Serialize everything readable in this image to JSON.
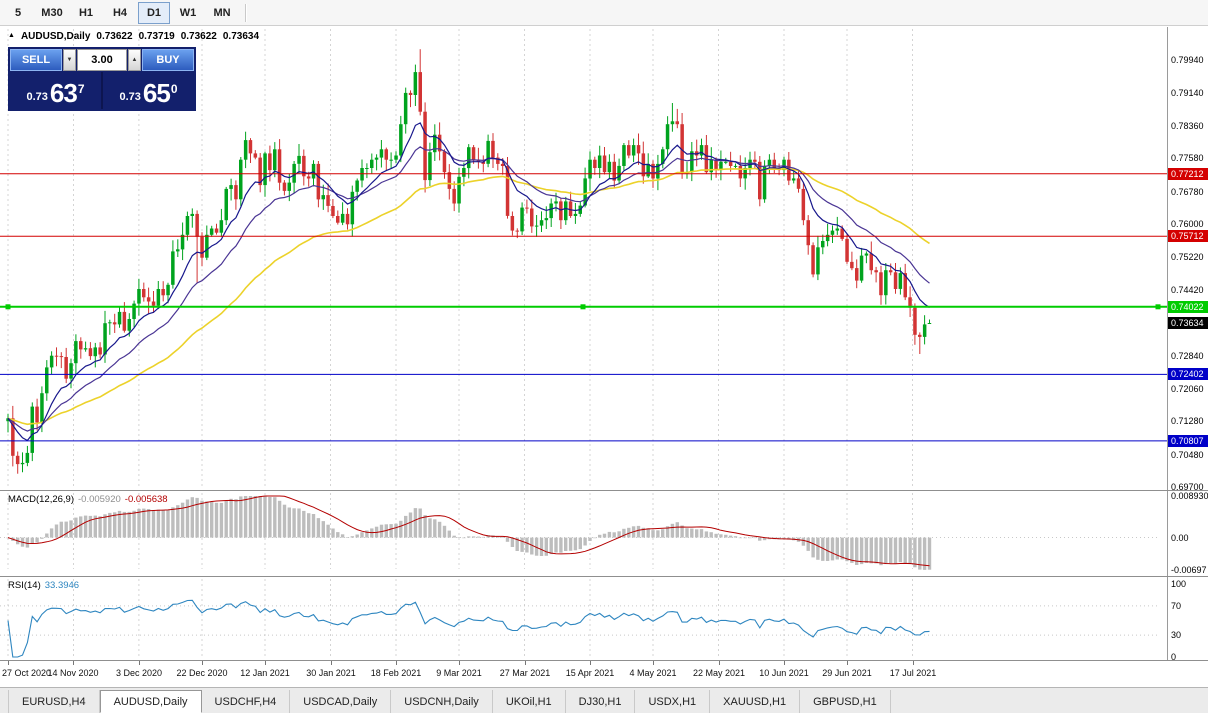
{
  "toolbar": {
    "buttons": [
      {
        "label": "5",
        "active": false
      },
      {
        "label": "M30",
        "active": false
      },
      {
        "label": "H1",
        "active": false
      },
      {
        "label": "H4",
        "active": false
      },
      {
        "label": "D1",
        "active": true
      },
      {
        "label": "W1",
        "active": false
      },
      {
        "label": "MN",
        "active": false
      }
    ]
  },
  "chart": {
    "title": {
      "marker": "▲",
      "symbol": "AUDUSD,Daily",
      "open": "0.73622",
      "high": "0.73719",
      "low": "0.73622",
      "close": "0.73634"
    }
  },
  "trade_panel": {
    "sell_label": "SELL",
    "buy_label": "BUY",
    "volume": "3.00",
    "spin_down": "▼",
    "spin_up": "▲",
    "sell_price_main": "0.73",
    "sell_price_big": "63",
    "sell_price_sup": "7",
    "buy_price_main": "0.73",
    "buy_price_big": "65",
    "buy_price_sup": "0"
  },
  "macd": {
    "name": "MACD(12,26,9)",
    "value_main": "-0.005920",
    "value_signal": "-0.005638"
  },
  "rsi": {
    "name": "RSI(14)",
    "value": "33.3946"
  },
  "tabs": {
    "active_index": 1,
    "items": [
      "EURUSD,H4",
      "AUDUSD,Daily",
      "USDCHF,H4",
      "USDCAD,Daily",
      "USDCNH,Daily",
      "UKOil,H1",
      "DJ30,H1",
      "USDX,H1",
      "XAUUSD,H1",
      "GBPUSD,H1"
    ]
  },
  "chart_data": {
    "type": "candlestick",
    "symbol": "AUDUSD",
    "timeframe": "Daily",
    "price_axis_labels": [
      "0.79940",
      "0.79140",
      "0.78360",
      "0.77580",
      "0.76780",
      "0.76000",
      "0.75220",
      "0.74420",
      "0.73640",
      "0.72840",
      "0.72060",
      "0.71280",
      "0.70480",
      "0.69700"
    ],
    "date_ticks": [
      {
        "label": "27 Oct 2020",
        "i": 0
      },
      {
        "label": "14 Nov 2020",
        "i": 13.5
      },
      {
        "label": "3 Dec 2020",
        "i": 27
      },
      {
        "label": "22 Dec 2020",
        "i": 40
      },
      {
        "label": "12 Jan 2021",
        "i": 53
      },
      {
        "label": "30 Jan 2021",
        "i": 66.5
      },
      {
        "label": "18 Feb 2021",
        "i": 80
      },
      {
        "label": "9 Mar 2021",
        "i": 93
      },
      {
        "label": "27 Mar 2021",
        "i": 106.5
      },
      {
        "label": "15 Apr 2021",
        "i": 120
      },
      {
        "label": "4 May 2021",
        "i": 133
      },
      {
        "label": "22 May 2021",
        "i": 146.5
      },
      {
        "label": "10 Jun 2021",
        "i": 160
      },
      {
        "label": "29 Jun 2021",
        "i": 173
      },
      {
        "label": "17 Jul 2021",
        "i": 186.5
      }
    ],
    "candles": {
      "first_open": 0.7128,
      "closes": [
        0.7135,
        0.7045,
        0.7025,
        0.7028,
        0.7052,
        0.7163,
        0.7125,
        0.7195,
        0.7257,
        0.7285,
        0.7284,
        0.7282,
        0.723,
        0.7267,
        0.732,
        0.73,
        0.7303,
        0.7284,
        0.7305,
        0.7288,
        0.7363,
        0.7365,
        0.736,
        0.739,
        0.7345,
        0.7373,
        0.741,
        0.7445,
        0.7425,
        0.7415,
        0.7405,
        0.7445,
        0.743,
        0.7455,
        0.7535,
        0.754,
        0.7575,
        0.762,
        0.7625,
        0.757,
        0.752,
        0.7575,
        0.759,
        0.758,
        0.761,
        0.7685,
        0.7694,
        0.766,
        0.7755,
        0.7802,
        0.777,
        0.776,
        0.7694,
        0.777,
        0.773,
        0.778,
        0.77,
        0.768,
        0.77,
        0.7745,
        0.7764,
        0.7715,
        0.771,
        0.7745,
        0.766,
        0.767,
        0.7644,
        0.762,
        0.7604,
        0.7625,
        0.76,
        0.7678,
        0.7705,
        0.7735,
        0.7735,
        0.7755,
        0.776,
        0.778,
        0.7755,
        0.7755,
        0.7765,
        0.784,
        0.7915,
        0.791,
        0.7965,
        0.787,
        0.7706,
        0.7773,
        0.7815,
        0.7775,
        0.7725,
        0.7685,
        0.765,
        0.7714,
        0.7735,
        0.7785,
        0.7755,
        0.775,
        0.7745,
        0.78,
        0.776,
        0.7745,
        0.774,
        0.762,
        0.7585,
        0.7583,
        0.764,
        0.7638,
        0.7595,
        0.7597,
        0.761,
        0.7615,
        0.765,
        0.7655,
        0.761,
        0.7655,
        0.762,
        0.7625,
        0.7645,
        0.771,
        0.7755,
        0.7735,
        0.7765,
        0.7725,
        0.775,
        0.7705,
        0.774,
        0.779,
        0.7765,
        0.779,
        0.777,
        0.7715,
        0.7745,
        0.771,
        0.7745,
        0.778,
        0.784,
        0.7847,
        0.784,
        0.7725,
        0.7725,
        0.7775,
        0.7765,
        0.779,
        0.7725,
        0.7755,
        0.773,
        0.775,
        0.775,
        0.774,
        0.774,
        0.771,
        0.7735,
        0.7755,
        0.775,
        0.766,
        0.774,
        0.7755,
        0.7735,
        0.773,
        0.7755,
        0.7705,
        0.771,
        0.7685,
        0.761,
        0.755,
        0.748,
        0.7545,
        0.756,
        0.7575,
        0.7585,
        0.759,
        0.7565,
        0.751,
        0.7495,
        0.7465,
        0.7525,
        0.753,
        0.749,
        0.7485,
        0.743,
        0.749,
        0.7485,
        0.7445,
        0.7483,
        0.7425,
        0.74,
        0.7335,
        0.733,
        0.736,
        0.73634
      ],
      "overrides": {
        "2": {
          "l": 0.7002
        },
        "39": {
          "l": 0.746
        },
        "49": {
          "h": 0.7822
        },
        "84": {
          "h": 0.7983
        },
        "85": {
          "h": 0.802
        },
        "137": {
          "h": 0.7891
        },
        "164": {
          "l": 0.7598
        },
        "188": {
          "l": 0.7289
        },
        "190": {
          "o": 0.73622,
          "h": 0.73719,
          "l": 0.73622,
          "c": 0.73634
        }
      }
    },
    "colors": {
      "up": "#00a31e",
      "down": "#d23434"
    },
    "moving_averages": [
      {
        "period": 50,
        "color": "#ecd22a",
        "width": 1.6
      },
      {
        "period": 21,
        "color": "#4a3594",
        "width": 1.2
      },
      {
        "period": 10,
        "color": "#17178c",
        "width": 1.2
      }
    ],
    "levels": [
      {
        "price": 0.77212,
        "label": "0.77212",
        "color": "#d40000",
        "width": 1
      },
      {
        "price": 0.75712,
        "label": "0.75712",
        "color": "#d40000",
        "width": 1
      },
      {
        "price": 0.74022,
        "label": "0.74022",
        "color": "#00cc00",
        "width": 2,
        "selected": true
      },
      {
        "price": 0.72402,
        "label": "0.72402",
        "color": "#0000c8",
        "width": 1
      },
      {
        "price": 0.70807,
        "label": "0.70807",
        "color": "#0000c8",
        "width": 1
      }
    ],
    "bid_tag": {
      "price": 0.73634,
      "label": "0.73634",
      "color": "#000000"
    },
    "macd_axis": [
      {
        "label": "0.008930",
        "value": 0.00893
      },
      {
        "label": "0.00",
        "value": 0
      },
      {
        "label": "-0.00697",
        "value": -0.00697
      }
    ],
    "rsi_axis": [
      {
        "label": "100",
        "value": 100
      },
      {
        "label": "70",
        "value": 70
      },
      {
        "label": "30",
        "value": 30
      },
      {
        "label": "0",
        "value": 0
      }
    ],
    "macd_params": {
      "fast": 12,
      "slow": 26,
      "signal": 9
    },
    "rsi_params": {
      "period": 14
    }
  }
}
